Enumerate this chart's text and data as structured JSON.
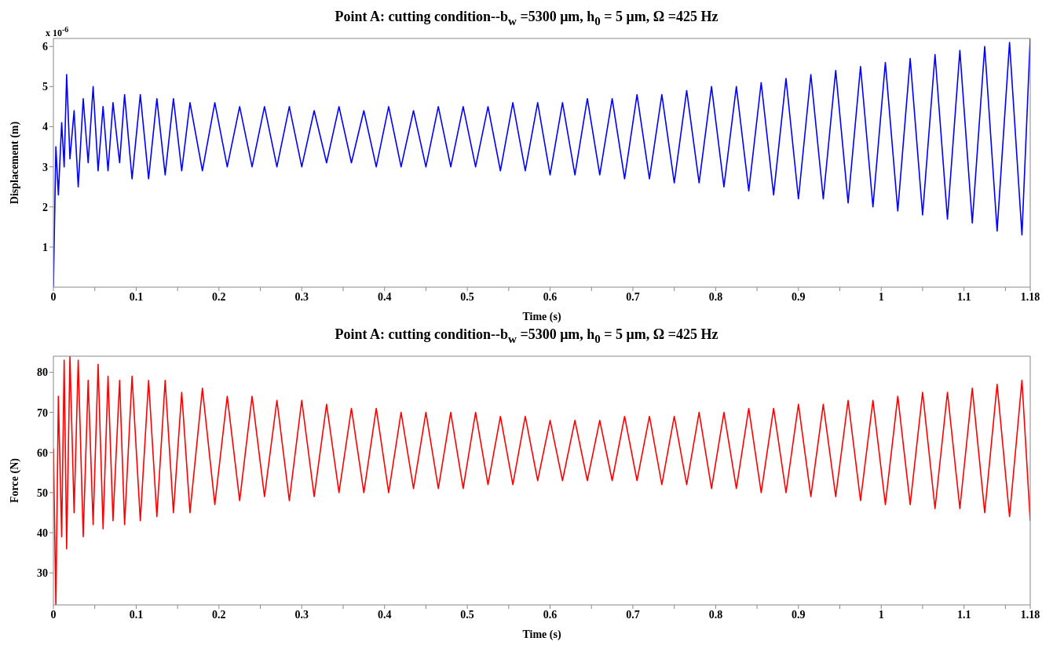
{
  "chart_data": [
    {
      "type": "line",
      "title": "Point A: cutting condition--b$_{w}$ =5300 μm,  h$_{0}$ = 5 μm,  Ω =425 Hz",
      "xlabel": "Time (s)",
      "ylabel": "Displacement (m)",
      "annotations": [
        "x 10$^{-6}$"
      ],
      "x": [
        0,
        0.003,
        0.006,
        0.01,
        0.013,
        0.016,
        0.02,
        0.025,
        0.03,
        0.036,
        0.042,
        0.048,
        0.054,
        0.06,
        0.066,
        0.072,
        0.08,
        0.086,
        0.095,
        0.105,
        0.115,
        0.125,
        0.135,
        0.145,
        0.155,
        0.165,
        0.18,
        0.195,
        0.21,
        0.225,
        0.24,
        0.255,
        0.27,
        0.285,
        0.3,
        0.315,
        0.33,
        0.345,
        0.36,
        0.375,
        0.39,
        0.405,
        0.42,
        0.435,
        0.45,
        0.465,
        0.48,
        0.495,
        0.51,
        0.525,
        0.54,
        0.555,
        0.57,
        0.585,
        0.6,
        0.615,
        0.63,
        0.645,
        0.66,
        0.675,
        0.69,
        0.705,
        0.72,
        0.735,
        0.75,
        0.765,
        0.78,
        0.795,
        0.81,
        0.825,
        0.84,
        0.855,
        0.87,
        0.885,
        0.9,
        0.915,
        0.93,
        0.945,
        0.96,
        0.975,
        0.99,
        1.005,
        1.02,
        1.035,
        1.05,
        1.065,
        1.08,
        1.095,
        1.11,
        1.125,
        1.14,
        1.155,
        1.17,
        1.18
      ],
      "series": [
        {
          "color": "#0000ff",
          "values": [
            0,
            3.5,
            2.3,
            4.1,
            3.0,
            5.3,
            3.2,
            4.4,
            2.5,
            4.7,
            3.1,
            5.0,
            2.9,
            4.5,
            2.9,
            4.6,
            3.1,
            4.8,
            2.7,
            4.8,
            2.7,
            4.7,
            2.8,
            4.7,
            2.9,
            4.6,
            2.9,
            4.6,
            3.0,
            4.5,
            3.0,
            4.5,
            3.0,
            4.5,
            3.0,
            4.4,
            3.1,
            4.5,
            3.1,
            4.4,
            3.0,
            4.5,
            3.0,
            4.4,
            3.0,
            4.5,
            3.0,
            4.5,
            3.0,
            4.5,
            2.9,
            4.6,
            2.9,
            4.6,
            2.8,
            4.6,
            2.8,
            4.7,
            2.8,
            4.7,
            2.7,
            4.8,
            2.7,
            4.8,
            2.6,
            4.9,
            2.6,
            5.0,
            2.5,
            5.0,
            2.4,
            5.1,
            2.3,
            5.2,
            2.2,
            5.3,
            2.2,
            5.4,
            2.1,
            5.5,
            2.0,
            5.6,
            1.9,
            5.7,
            1.8,
            5.8,
            1.7,
            5.9,
            1.6,
            6.0,
            1.4,
            6.1,
            1.3,
            6.2
          ]
        }
      ],
      "xlim": [
        0,
        1.18
      ],
      "ylim": [
        0,
        6.2
      ],
      "xticks": [
        0,
        {
          "value": 0.05,
          "label": null
        },
        0.1,
        {
          "value": 0.15,
          "label": null
        },
        0.2,
        {
          "value": 0.25,
          "label": null
        },
        0.3,
        {
          "value": 0.35,
          "label": null
        },
        0.4,
        {
          "value": 0.45,
          "label": null
        },
        0.5,
        {
          "value": 0.55,
          "label": null
        },
        0.6,
        {
          "value": 0.65,
          "label": null
        },
        0.7,
        {
          "value": 0.75,
          "label": null
        },
        0.8,
        {
          "value": 0.85,
          "label": null
        },
        0.9,
        {
          "value": 0.95,
          "label": null
        },
        1,
        {
          "value": 1.05,
          "label": null
        },
        1.1,
        {
          "value": 1.15,
          "label": null
        },
        1.18
      ],
      "yticks": [
        1,
        2,
        3,
        4,
        5,
        6
      ],
      "grid": false,
      "legend": false,
      "marker": "none",
      "line_style": "solid"
    },
    {
      "type": "line",
      "title": "Point A: cutting condition--b$_{w}$ =5300 μm,  h$_{0}$ = 5 μm,  Ω =425 Hz",
      "xlabel": "Time (s)",
      "ylabel": "Force  (N)",
      "x": [
        0,
        0.003,
        0.006,
        0.01,
        0.013,
        0.016,
        0.02,
        0.025,
        0.03,
        0.036,
        0.042,
        0.048,
        0.054,
        0.06,
        0.066,
        0.072,
        0.08,
        0.086,
        0.095,
        0.105,
        0.115,
        0.125,
        0.135,
        0.145,
        0.155,
        0.165,
        0.18,
        0.195,
        0.21,
        0.225,
        0.24,
        0.255,
        0.27,
        0.285,
        0.3,
        0.315,
        0.33,
        0.345,
        0.36,
        0.375,
        0.39,
        0.405,
        0.42,
        0.435,
        0.45,
        0.465,
        0.48,
        0.495,
        0.51,
        0.525,
        0.54,
        0.555,
        0.57,
        0.585,
        0.6,
        0.615,
        0.63,
        0.645,
        0.66,
        0.675,
        0.69,
        0.705,
        0.72,
        0.735,
        0.75,
        0.765,
        0.78,
        0.795,
        0.81,
        0.825,
        0.84,
        0.855,
        0.87,
        0.885,
        0.9,
        0.915,
        0.93,
        0.945,
        0.96,
        0.975,
        0.99,
        1.005,
        1.02,
        1.035,
        1.05,
        1.065,
        1.08,
        1.095,
        1.11,
        1.125,
        1.14,
        1.155,
        1.17,
        1.18
      ],
      "series": [
        {
          "color": "#ff0000",
          "values": [
            61,
            22,
            74,
            39,
            83,
            36,
            84,
            45,
            83,
            39,
            78,
            42,
            82,
            41,
            79,
            43,
            78,
            42,
            79,
            43,
            78,
            44,
            78,
            45,
            75,
            45,
            76,
            47,
            74,
            48,
            74,
            49,
            73,
            48,
            73,
            49,
            72,
            50,
            71,
            50,
            71,
            50,
            70,
            51,
            70,
            51,
            70,
            51,
            70,
            52,
            69,
            52,
            69,
            53,
            68,
            53,
            68,
            53,
            68,
            53,
            69,
            53,
            69,
            52,
            69,
            52,
            70,
            51,
            70,
            51,
            71,
            50,
            71,
            50,
            72,
            49,
            72,
            49,
            73,
            48,
            73,
            47,
            74,
            47,
            75,
            46,
            75,
            46,
            76,
            45,
            77,
            44,
            78,
            43
          ]
        }
      ],
      "xlim": [
        0,
        1.18
      ],
      "ylim": [
        22,
        84
      ],
      "xticks": [
        0,
        {
          "value": 0.05,
          "label": null
        },
        0.1,
        {
          "value": 0.15,
          "label": null
        },
        0.2,
        {
          "value": 0.25,
          "label": null
        },
        0.3,
        {
          "value": 0.35,
          "label": null
        },
        0.4,
        {
          "value": 0.45,
          "label": null
        },
        0.5,
        {
          "value": 0.55,
          "label": null
        },
        0.6,
        {
          "value": 0.65,
          "label": null
        },
        0.7,
        {
          "value": 0.75,
          "label": null
        },
        0.8,
        {
          "value": 0.85,
          "label": null
        },
        0.9,
        {
          "value": 0.95,
          "label": null
        },
        1,
        {
          "value": 1.05,
          "label": null
        },
        1.1,
        {
          "value": 1.15,
          "label": null
        },
        1.18
      ],
      "yticks": [
        30,
        40,
        50,
        60,
        70,
        80
      ],
      "grid": false,
      "legend": false,
      "marker": "none",
      "line_style": "solid"
    }
  ]
}
